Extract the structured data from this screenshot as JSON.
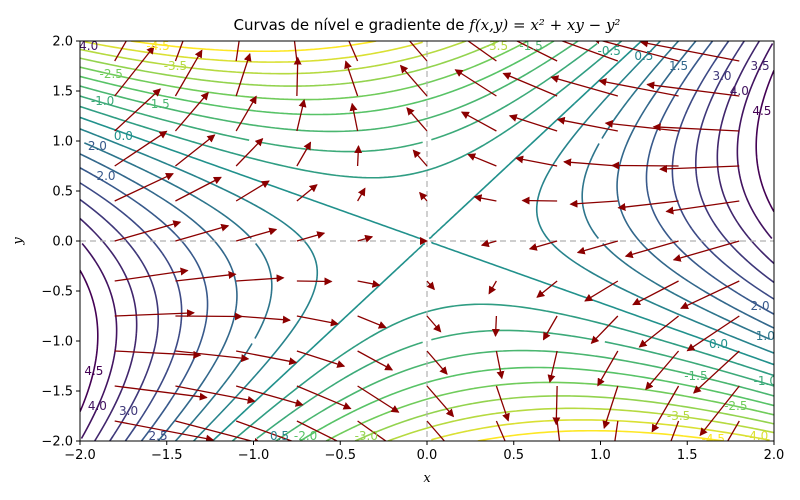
{
  "chart_data": {
    "type": "contour",
    "title": "Curvas de nível e gradiente de f(x, y) = x² + xy − y²",
    "title_parts": {
      "prefix": "Curvas de nível e gradiente de ",
      "math": "f(x,y) = x² + xy − y²"
    },
    "xlabel": "x",
    "ylabel": "y",
    "xlim": [
      -2,
      2
    ],
    "ylim": [
      -2,
      2
    ],
    "xticks": [
      "−2.0",
      "−1.5",
      "−1.0",
      "−0.5",
      "0.0",
      "0.5",
      "1.0",
      "1.5",
      "2.0"
    ],
    "yticks": [
      "−2.0",
      "−1.5",
      "−1.0",
      "−0.5",
      "0.0",
      "0.5",
      "1.0",
      "1.5",
      "2.0"
    ],
    "function": "x^2 + x*y - y^2",
    "contour_levels": [
      -4.5,
      -4.0,
      -3.5,
      -3.0,
      -2.5,
      -2.0,
      -1.5,
      -1.0,
      -0.5,
      0.0,
      0.5,
      1.0,
      1.5,
      2.0,
      2.5,
      3.0,
      3.5,
      4.0,
      4.5
    ],
    "colormap": "viridis (reversed: low = yellow, high = dark purple)",
    "contour_labels": [
      {
        "x": 1.92,
        "y": 1.75,
        "text": "3.5"
      },
      {
        "x": 1.93,
        "y": 1.3,
        "text": "4.5"
      },
      {
        "x": 1.8,
        "y": 1.5,
        "text": "4.0"
      },
      {
        "x": 1.7,
        "y": 1.65,
        "text": "3.0"
      },
      {
        "x": 1.45,
        "y": 1.75,
        "text": "1.5"
      },
      {
        "x": 1.25,
        "y": 1.85,
        "text": "0.5"
      },
      {
        "x": 1.05,
        "y": 1.9,
        "text": "-0.5"
      },
      {
        "x": 0.6,
        "y": 1.95,
        "text": "-1.5"
      },
      {
        "x": 0.4,
        "y": 1.95,
        "text": "-3.5"
      },
      {
        "x": -1.45,
        "y": 1.75,
        "text": "-3.5"
      },
      {
        "x": -1.82,
        "y": 1.67,
        "text": "-2.5"
      },
      {
        "x": -1.87,
        "y": 1.4,
        "text": "-1.0"
      },
      {
        "x": -1.55,
        "y": 1.37,
        "text": "-1.5"
      },
      {
        "x": -1.75,
        "y": 1.05,
        "text": "0.0"
      },
      {
        "x": -1.9,
        "y": 0.95,
        "text": "2.0"
      },
      {
        "x": -1.85,
        "y": 0.65,
        "text": "2.0"
      },
      {
        "x": -1.95,
        "y": 1.95,
        "text": "4.0"
      },
      {
        "x": -1.55,
        "y": 1.95,
        "text": "-4.5"
      },
      {
        "x": 1.92,
        "y": -0.65,
        "text": "2.0"
      },
      {
        "x": 1.95,
        "y": -0.95,
        "text": "1.0"
      },
      {
        "x": 1.68,
        "y": -1.03,
        "text": "0.0"
      },
      {
        "x": 1.55,
        "y": -1.35,
        "text": "-1.5"
      },
      {
        "x": 1.95,
        "y": -1.4,
        "text": "-1.0"
      },
      {
        "x": 1.78,
        "y": -1.65,
        "text": "-2.5"
      },
      {
        "x": 1.45,
        "y": -1.75,
        "text": "-3.5"
      },
      {
        "x": 1.9,
        "y": -1.95,
        "text": "-4.0"
      },
      {
        "x": 1.65,
        "y": -1.98,
        "text": "-4.5"
      },
      {
        "x": -1.92,
        "y": -1.3,
        "text": "4.5"
      },
      {
        "x": -1.9,
        "y": -1.65,
        "text": "4.0"
      },
      {
        "x": -1.72,
        "y": -1.7,
        "text": "3.0"
      },
      {
        "x": -1.55,
        "y": -1.95,
        "text": "2.5"
      },
      {
        "x": -0.85,
        "y": -1.95,
        "text": "0.5"
      },
      {
        "x": -0.35,
        "y": -1.95,
        "text": "-3.0"
      },
      {
        "x": -0.7,
        "y": -1.95,
        "text": "-2.0"
      }
    ],
    "gradient_field": {
      "grid_x": [
        -1.8,
        -1.45,
        -1.1,
        -0.75,
        -0.4,
        0.0,
        0.4,
        0.75,
        1.1,
        1.45,
        1.8
      ],
      "grid_y": [
        -1.8,
        -1.45,
        -1.1,
        -0.75,
        -0.4,
        0.0,
        0.4,
        0.75,
        1.1,
        1.45,
        1.8
      ],
      "color": "#8b0000",
      "length_scale": 0.105,
      "direction": "toward decreasing f (arrows = −∇f)"
    },
    "grid": "off",
    "reference_lines": [
      "x = 0 (dashed)",
      "y = 0 (dashed)"
    ]
  }
}
